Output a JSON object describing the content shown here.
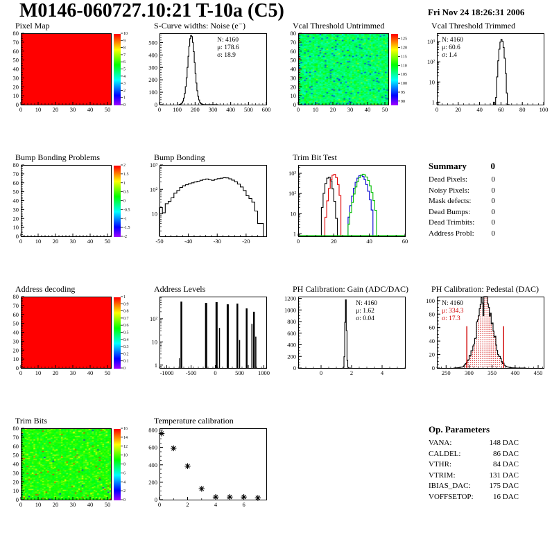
{
  "header": {
    "title": "M0146-060727.10:21 T-10a (C5)",
    "date": "Fri Nov 24 18:26:31 2006"
  },
  "summary": {
    "title": "Summary",
    "value": "0",
    "rows": [
      {
        "label": "Dead Pixels:",
        "value": "0"
      },
      {
        "label": "Noisy Pixels:",
        "value": "0"
      },
      {
        "label": "Mask defects:",
        "value": "0"
      },
      {
        "label": "Dead Bumps:",
        "value": "0"
      },
      {
        "label": "Dead Trimbits:",
        "value": "0"
      },
      {
        "label": "Address Probl:",
        "value": "0"
      }
    ]
  },
  "op_parameters": {
    "title": "Op. Parameters",
    "rows": [
      {
        "label": "VANA:",
        "value": "148 DAC"
      },
      {
        "label": "CALDEL:",
        "value": "86 DAC"
      },
      {
        "label": "VTHR:",
        "value": "84 DAC"
      },
      {
        "label": "VTRIM:",
        "value": "131 DAC"
      },
      {
        "label": "IBIAS_DAC:",
        "value": "175 DAC"
      },
      {
        "label": "VOFFSETOP:",
        "value": "16 DAC"
      }
    ]
  },
  "chart_data": [
    {
      "id": "pixel-map",
      "type": "heatmap",
      "title": "Pixel Map",
      "xlim": [
        0,
        52
      ],
      "ylim": [
        0,
        80
      ],
      "xticks": [
        0,
        10,
        20,
        30,
        40,
        50
      ],
      "yticks": [
        0,
        10,
        20,
        30,
        40,
        50,
        60,
        70,
        80
      ],
      "xminor": 2,
      "yminor": 2,
      "map": {
        "mode": "uniform",
        "value": 1.0
      },
      "colorbar": {
        "min": 0,
        "max": 10,
        "labels": [
          0,
          1,
          2,
          3,
          4,
          5,
          6,
          7,
          8,
          9,
          10
        ]
      }
    },
    {
      "id": "scurve-noise",
      "type": "hist",
      "title": "S-Curve widths: Noise (e⁻)",
      "xlim": [
        0,
        600
      ],
      "ylim": [
        0,
        575
      ],
      "xticks": [
        0,
        100,
        200,
        300,
        400,
        500,
        600
      ],
      "xminor": 20,
      "yticks": [
        0,
        100,
        200,
        300,
        400,
        500
      ],
      "yminor": 20,
      "series": [
        {
          "color": "#000000",
          "binw": 5,
          "range": [
            110,
            330
          ],
          "gauss": {
            "mu": 178.6,
            "sigma": 18.9,
            "peak": 560
          }
        }
      ],
      "stats": {
        "pos": "tr",
        "lines": [
          {
            "text": "N: 4160",
            "color": "#000000"
          },
          {
            "text": "μ: 178.6",
            "color": "#000000"
          },
          {
            "text": "σ: 18.9",
            "color": "#000000"
          }
        ]
      }
    },
    {
      "id": "vcal-untrimmed",
      "type": "heatmap",
      "title": "Vcal Threshold Untrimmed",
      "xlim": [
        0,
        52
      ],
      "ylim": [
        0,
        80
      ],
      "xticks": [
        0,
        10,
        20,
        30,
        40,
        50
      ],
      "yticks": [
        0,
        10,
        20,
        30,
        40,
        50,
        60,
        70,
        80
      ],
      "xminor": 2,
      "yminor": 2,
      "map": {
        "mode": "noise",
        "seed": 7,
        "base": 0.48,
        "spread": 0.1,
        "warm_prob": 0.06,
        "warm": 0.16,
        "low_prob": 0.035,
        "low": 0.17,
        "edge_hot": true
      },
      "colorbar": {
        "min": 88,
        "max": 128,
        "labels": [
          90,
          95,
          100,
          105,
          110,
          115,
          120,
          125
        ]
      }
    },
    {
      "id": "vcal-trimmed",
      "type": "hist",
      "title": "Vcal Threshold Trimmed",
      "log": true,
      "xlim": [
        0,
        100
      ],
      "ylim": [
        0.75,
        2600
      ],
      "xticks": [
        0,
        20,
        40,
        60,
        80,
        100
      ],
      "xminor": 5,
      "series": [
        {
          "color": "#000000",
          "binw": 1,
          "range": [
            54,
            68
          ],
          "gauss": {
            "mu": 60.6,
            "sigma": 1.4,
            "peak": 1300
          }
        },
        {
          "color": "#000000",
          "binw": 1,
          "bins": {
            "x0": 53,
            "values": [
              1
            ]
          }
        }
      ],
      "stats": {
        "pos": "tl",
        "lines": [
          {
            "text": "N: 4160",
            "color": "#000000"
          },
          {
            "text": "μ: 60.6",
            "color": "#000000"
          },
          {
            "text": "σ: 1.4",
            "color": "#000000"
          }
        ]
      }
    },
    {
      "id": "bump-problems",
      "type": "heatmap",
      "title": "Bump Bonding Problems",
      "xlim": [
        0,
        52
      ],
      "ylim": [
        0,
        80
      ],
      "xticks": [
        0,
        10,
        20,
        30,
        40,
        50
      ],
      "yticks": [
        0,
        10,
        20,
        30,
        40,
        50,
        60,
        70,
        80
      ],
      "xminor": 2,
      "yminor": 2,
      "map": {
        "mode": "empty"
      },
      "colorbar": {
        "min": -2,
        "max": 2,
        "labels": [
          -2,
          -1.5,
          -1,
          -0.5,
          0,
          0.5,
          1,
          1.5,
          2
        ]
      }
    },
    {
      "id": "bump-bonding",
      "type": "hist",
      "title": "Bump Bonding",
      "log": true,
      "xlim": [
        -50,
        -13
      ],
      "ylim": [
        1.2,
        1000
      ],
      "xticks": [
        -50,
        -40,
        -30,
        -20
      ],
      "xminor": 2,
      "series": [
        {
          "color": "#000000",
          "binw": 1,
          "bins": {
            "x0": -50,
            "values": [
              18,
              11,
              26,
              32,
              45,
              70,
              90,
              120,
              140,
              155,
              170,
              185,
              200,
              215,
              235,
              255,
              265,
              245,
              235,
              260,
              275,
              285,
              300,
              295,
              270,
              240,
              205,
              165,
              125,
              90,
              55,
              42,
              30,
              13,
              4,
              4
            ]
          }
        }
      ]
    },
    {
      "id": "trim-bit-test",
      "type": "hist",
      "title": "Trim Bit Test",
      "log": true,
      "xlim": [
        0,
        60
      ],
      "ylim": [
        0.75,
        2600
      ],
      "xticks": [
        0,
        20,
        40,
        60
      ],
      "xminor": 5,
      "baseline_color": "#00bf00",
      "series": [
        {
          "color": "#000000",
          "binw": 1,
          "range": [
            13,
            22
          ],
          "gauss": {
            "mu": 17.2,
            "sigma": 1.4,
            "peak": 650
          }
        },
        {
          "color": "#e00000",
          "binw": 1,
          "range": [
            15,
            24
          ],
          "gauss": {
            "mu": 20.2,
            "sigma": 1.5,
            "peak": 900
          }
        },
        {
          "color": "#0000d0",
          "binw": 1,
          "range": [
            28,
            42
          ],
          "gauss": {
            "mu": 35.3,
            "sigma": 2.2,
            "peak": 800
          }
        },
        {
          "color": "#00bf00",
          "binw": 1,
          "range": [
            28,
            44
          ],
          "gauss": {
            "mu": 36.6,
            "sigma": 2.4,
            "peak": 900
          }
        }
      ]
    },
    {
      "id": "address-decoding",
      "type": "heatmap",
      "title": "Address decoding",
      "xlim": [
        0,
        52
      ],
      "ylim": [
        0,
        80
      ],
      "xticks": [
        0,
        10,
        20,
        30,
        40,
        50
      ],
      "yticks": [
        0,
        10,
        20,
        30,
        40,
        50,
        60,
        70,
        80
      ],
      "xminor": 2,
      "yminor": 2,
      "map": {
        "mode": "uniform",
        "value": 1.0
      },
      "colorbar": {
        "min": 0,
        "max": 1,
        "labels": [
          0,
          0.1,
          0.2,
          0.3,
          0.4,
          0.5,
          0.6,
          0.7,
          0.8,
          0.9,
          1
        ]
      }
    },
    {
      "id": "address-levels",
      "type": "hist",
      "title": "Address Levels",
      "log": true,
      "xlim": [
        -1150,
        1050
      ],
      "ylim": [
        0.75,
        900
      ],
      "xticks": [
        -1000,
        -500,
        0,
        500,
        1000
      ],
      "xminor": 100,
      "spikes": [
        [
          -740,
          2,
          1
        ],
        [
          -700,
          550,
          2.5
        ],
        [
          -190,
          480,
          3
        ],
        [
          25,
          520,
          3
        ],
        [
          85,
          40,
          1.5
        ],
        [
          255,
          420,
          3
        ],
        [
          455,
          450,
          2.5
        ],
        [
          500,
          12,
          1.5
        ],
        [
          645,
          280,
          2.5
        ],
        [
          680,
          1,
          1
        ],
        [
          755,
          60,
          1.5
        ],
        [
          795,
          200,
          2.5
        ],
        [
          835,
          17,
          1.5
        ]
      ]
    },
    {
      "id": "ph-gain",
      "type": "hist",
      "title": "PH Calibration: Gain (ADC/DAC)",
      "xlim": [
        -1.5,
        5.5
      ],
      "ylim": [
        0,
        1230
      ],
      "xticks": [
        0,
        2,
        4
      ],
      "xminor": 0.5,
      "yticks": [
        0,
        200,
        400,
        600,
        800,
        1000,
        1200
      ],
      "yminor": 50,
      "series": [
        {
          "color": "#000000",
          "binw": 0.05,
          "range": [
            1.4,
            1.95
          ],
          "gauss": {
            "mu": 1.62,
            "sigma": 0.05,
            "peak": 1180
          }
        }
      ],
      "stats": {
        "pos": "tr",
        "lines": [
          {
            "text": "N: 4160",
            "color": "#000000"
          },
          {
            "text": "μ: 1.62",
            "color": "#000000"
          },
          {
            "text": "σ: 0.04",
            "color": "#000000"
          }
        ]
      }
    },
    {
      "id": "ph-pedestal",
      "type": "hist",
      "title": "PH Calibration: Pedestal (DAC)",
      "xlim": [
        230,
        462
      ],
      "ylim": [
        0,
        106
      ],
      "xticks": [
        250,
        300,
        350,
        400,
        450
      ],
      "xminor": 10,
      "yticks": [
        0,
        20,
        40,
        60,
        80,
        100
      ],
      "yminor": 5,
      "series": [
        {
          "color": "#000000",
          "fill": "dots",
          "binw": 2,
          "range": [
            266,
            424
          ],
          "noise": 0.22,
          "seed": 13,
          "gauss": {
            "mu": 334.3,
            "sigma": 17.3,
            "peak": 100
          }
        }
      ],
      "vlines": [
        {
          "x": 295,
          "y": 62,
          "color": "#d00000"
        },
        {
          "x": 375,
          "y": 62,
          "color": "#d00000"
        }
      ],
      "stats": {
        "pos": "tl",
        "lines": [
          {
            "text": "N: 4160",
            "color": "#000000"
          },
          {
            "text": "μ: 334.3",
            "color": "#d00000"
          },
          {
            "text": "σ: 17.3",
            "color": "#d00000"
          }
        ]
      }
    },
    {
      "id": "trim-bits",
      "type": "heatmap",
      "title": "Trim Bits",
      "xlim": [
        0,
        52
      ],
      "ylim": [
        0,
        80
      ],
      "xticks": [
        0,
        10,
        20,
        30,
        40,
        50
      ],
      "yticks": [
        0,
        10,
        20,
        30,
        40,
        50,
        60,
        70,
        80
      ],
      "xminor": 2,
      "yminor": 2,
      "map": {
        "mode": "noise",
        "seed": 21,
        "base": 0.58,
        "spread": 0.08,
        "warm_prob": 0.1,
        "warm": 0.14,
        "hot_prob": 0.012,
        "low_prob": 0.004,
        "low": 0.12
      },
      "colorbar": {
        "min": 0,
        "max": 16,
        "labels": [
          0,
          2,
          4,
          6,
          8,
          10,
          12,
          14,
          16
        ]
      }
    },
    {
      "id": "temperature",
      "type": "scatter",
      "title": "Temperature calibration",
      "xlim": [
        0,
        7.6
      ],
      "ylim": [
        0,
        820
      ],
      "xticks": [
        0,
        2,
        4,
        6
      ],
      "xminor": 1,
      "yticks": [
        0,
        200,
        400,
        600,
        800
      ],
      "yminor": 50,
      "points": [
        [
          0.15,
          760
        ],
        [
          1,
          590
        ],
        [
          2,
          385
        ],
        [
          3,
          125
        ],
        [
          4,
          30
        ],
        [
          5,
          30
        ],
        [
          6,
          30
        ],
        [
          7,
          20
        ]
      ],
      "marker": "star"
    }
  ]
}
